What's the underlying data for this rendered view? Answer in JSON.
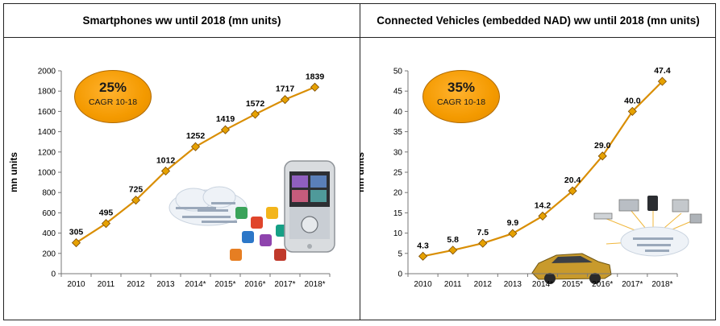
{
  "chart_data": [
    {
      "type": "line",
      "title": "Smartphones ww until 2018 (mn units)",
      "ylabel": "mn units",
      "xlabel": "",
      "categories": [
        "2010",
        "2011",
        "2012",
        "2013",
        "2014*",
        "2015*",
        "2016*",
        "2017*",
        "2018*"
      ],
      "values": [
        305,
        495,
        725,
        1012,
        1252,
        1419,
        1572,
        1717,
        1839
      ],
      "value_labels": [
        "305",
        "495",
        "725",
        "1012",
        "1252",
        "1419",
        "1572",
        "1717",
        "1839"
      ],
      "ylim": [
        0,
        2000
      ],
      "yticks": [
        "0",
        "200",
        "400",
        "600",
        "800",
        "1000",
        "1200",
        "1400",
        "1600",
        "1800",
        "2000"
      ],
      "grid": false,
      "color": "#d98e04",
      "marker_color": "#e6a100",
      "cagr": {
        "value": "25%",
        "label": "CAGR 10-18"
      },
      "illustration": "smartphone-with-cloud-apps"
    },
    {
      "type": "line",
      "title": "Connected Vehicles (embedded NAD) ww until 2018 (mn units)",
      "ylabel": "mn units",
      "xlabel": "",
      "categories": [
        "2010",
        "2011",
        "2012",
        "2013",
        "2014*",
        "2015*",
        "2016*",
        "2017*",
        "2018*"
      ],
      "values": [
        4.3,
        5.8,
        7.5,
        9.9,
        14.2,
        20.4,
        29.0,
        40.0,
        47.4
      ],
      "value_labels": [
        "4.3",
        "5.8",
        "7.5",
        "9.9",
        "14.2",
        "20.4",
        "29.0",
        "40.0",
        "47.4"
      ],
      "ylim": [
        0,
        50
      ],
      "yticks": [
        "0",
        "5",
        "10",
        "15",
        "20",
        "25",
        "30",
        "35",
        "40",
        "45",
        "50"
      ],
      "grid": false,
      "color": "#d98e04",
      "marker_color": "#e6a100",
      "cagr": {
        "value": "35%",
        "label": "CAGR 10-18"
      },
      "illustration": "car-connected-to-cloud-devices"
    }
  ]
}
